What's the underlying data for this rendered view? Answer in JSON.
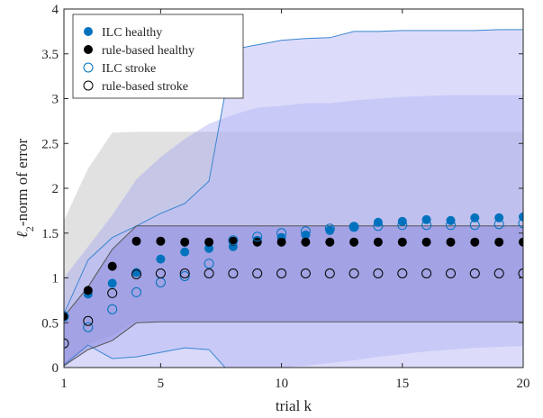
{
  "chart_data": {
    "type": "scatter",
    "xlabel": "trial k",
    "ylabel_sub": "2",
    "ylabel_rest": "-norm of error",
    "xlim": [
      1,
      20
    ],
    "ylim": [
      0,
      4
    ],
    "xticks": [
      1,
      5,
      10,
      15,
      20
    ],
    "yticks": [
      0,
      0.5,
      1,
      1.5,
      2,
      2.5,
      3,
      3.5,
      4
    ],
    "grid": false,
    "legend_position": "top-left",
    "x": [
      1,
      2,
      3,
      4,
      5,
      6,
      7,
      8,
      9,
      10,
      11,
      12,
      13,
      14,
      15,
      16,
      17,
      18,
      19,
      20
    ],
    "series": [
      {
        "name": "ILC healthy",
        "style": "filled",
        "color": "#0072BD",
        "values": [
          0.58,
          0.82,
          0.94,
          1.06,
          1.21,
          1.29,
          1.33,
          1.35,
          1.42,
          1.45,
          1.48,
          1.53,
          1.57,
          1.62,
          1.63,
          1.65,
          1.64,
          1.67,
          1.67,
          1.68
        ]
      },
      {
        "name": "rule-based healthy",
        "style": "filled",
        "color": "#000000",
        "values": [
          0.57,
          0.86,
          1.13,
          1.41,
          1.41,
          1.4,
          1.4,
          1.41,
          1.4,
          1.4,
          1.4,
          1.4,
          1.4,
          1.4,
          1.4,
          1.4,
          1.4,
          1.4,
          1.4,
          1.4
        ]
      },
      {
        "name": "ILC stroke",
        "style": "open",
        "color": "#0072BD",
        "values": [
          0.57,
          0.45,
          0.65,
          0.84,
          0.95,
          1.02,
          1.16,
          1.42,
          1.46,
          1.5,
          1.52,
          1.55,
          1.57,
          1.58,
          1.59,
          1.59,
          1.59,
          1.59,
          1.6,
          1.61
        ]
      },
      {
        "name": "rule-based stroke",
        "style": "open",
        "color": "#000000",
        "values": [
          0.27,
          0.52,
          0.83,
          1.04,
          1.05,
          1.05,
          1.05,
          1.05,
          1.05,
          1.05,
          1.05,
          1.05,
          1.05,
          1.05,
          1.05,
          1.05,
          1.05,
          1.05,
          1.05,
          1.05
        ]
      }
    ],
    "bands": [
      {
        "series": "rule-based stroke",
        "color": "#c8c8c8",
        "opacity": 0.55,
        "upper": [
          1.64,
          2.22,
          2.62,
          2.63,
          2.63,
          2.63,
          2.63,
          2.63,
          2.63,
          2.63,
          2.63,
          2.63,
          2.63,
          2.63,
          2.63,
          2.63,
          2.63,
          2.63,
          2.63,
          2.63
        ],
        "lower": [
          0.0,
          0.26,
          0.36,
          0.52,
          0.52,
          0.52,
          0.52,
          0.52,
          0.52,
          0.52,
          0.52,
          0.52,
          0.52,
          0.52,
          0.52,
          0.52,
          0.52,
          0.52,
          0.52,
          0.52
        ]
      },
      {
        "series": "ILC stroke",
        "color": "#9a9af2",
        "opacity": 0.38,
        "upper": [
          1.0,
          1.35,
          1.7,
          2.1,
          2.35,
          2.55,
          2.72,
          2.82,
          2.9,
          2.92,
          2.95,
          2.95,
          2.98,
          3.0,
          3.02,
          3.03,
          3.04,
          3.04,
          3.04,
          3.04
        ],
        "lower": [
          0.0,
          0.0,
          0.0,
          0.0,
          0.0,
          0.0,
          0.0,
          0.0,
          0.0,
          0.0,
          0.02,
          0.05,
          0.08,
          0.12,
          0.15,
          0.18,
          0.2,
          0.22,
          0.23,
          0.24
        ]
      },
      {
        "series": "ILC healthy",
        "color": "#b9b9f6",
        "opacity": 0.5,
        "edge": "#3a86d0",
        "upper": [
          0.6,
          1.2,
          1.45,
          1.58,
          1.72,
          1.83,
          2.08,
          3.55,
          3.6,
          3.65,
          3.67,
          3.68,
          3.75,
          3.75,
          3.76,
          3.76,
          3.76,
          3.76,
          3.77,
          3.77
        ],
        "lower": [
          0.03,
          0.25,
          0.1,
          0.12,
          0.17,
          0.22,
          0.2,
          -0.1,
          -0.1,
          -0.1,
          -0.1,
          -0.1,
          -0.1,
          -0.1,
          -0.1,
          -0.1,
          -0.1,
          -0.1,
          -0.1,
          -0.1
        ]
      },
      {
        "series": "rule-based healthy",
        "color": "#5c5ccc",
        "opacity": 0.3,
        "edge": "#555555",
        "upper": [
          0.57,
          0.9,
          1.32,
          1.58,
          1.58,
          1.58,
          1.58,
          1.58,
          1.58,
          1.58,
          1.58,
          1.58,
          1.58,
          1.58,
          1.58,
          1.58,
          1.58,
          1.58,
          1.58,
          1.58
        ],
        "lower": [
          0.02,
          0.2,
          0.3,
          0.5,
          0.51,
          0.51,
          0.51,
          0.51,
          0.51,
          0.51,
          0.51,
          0.51,
          0.51,
          0.51,
          0.51,
          0.51,
          0.51,
          0.51,
          0.51,
          0.51
        ]
      }
    ]
  }
}
